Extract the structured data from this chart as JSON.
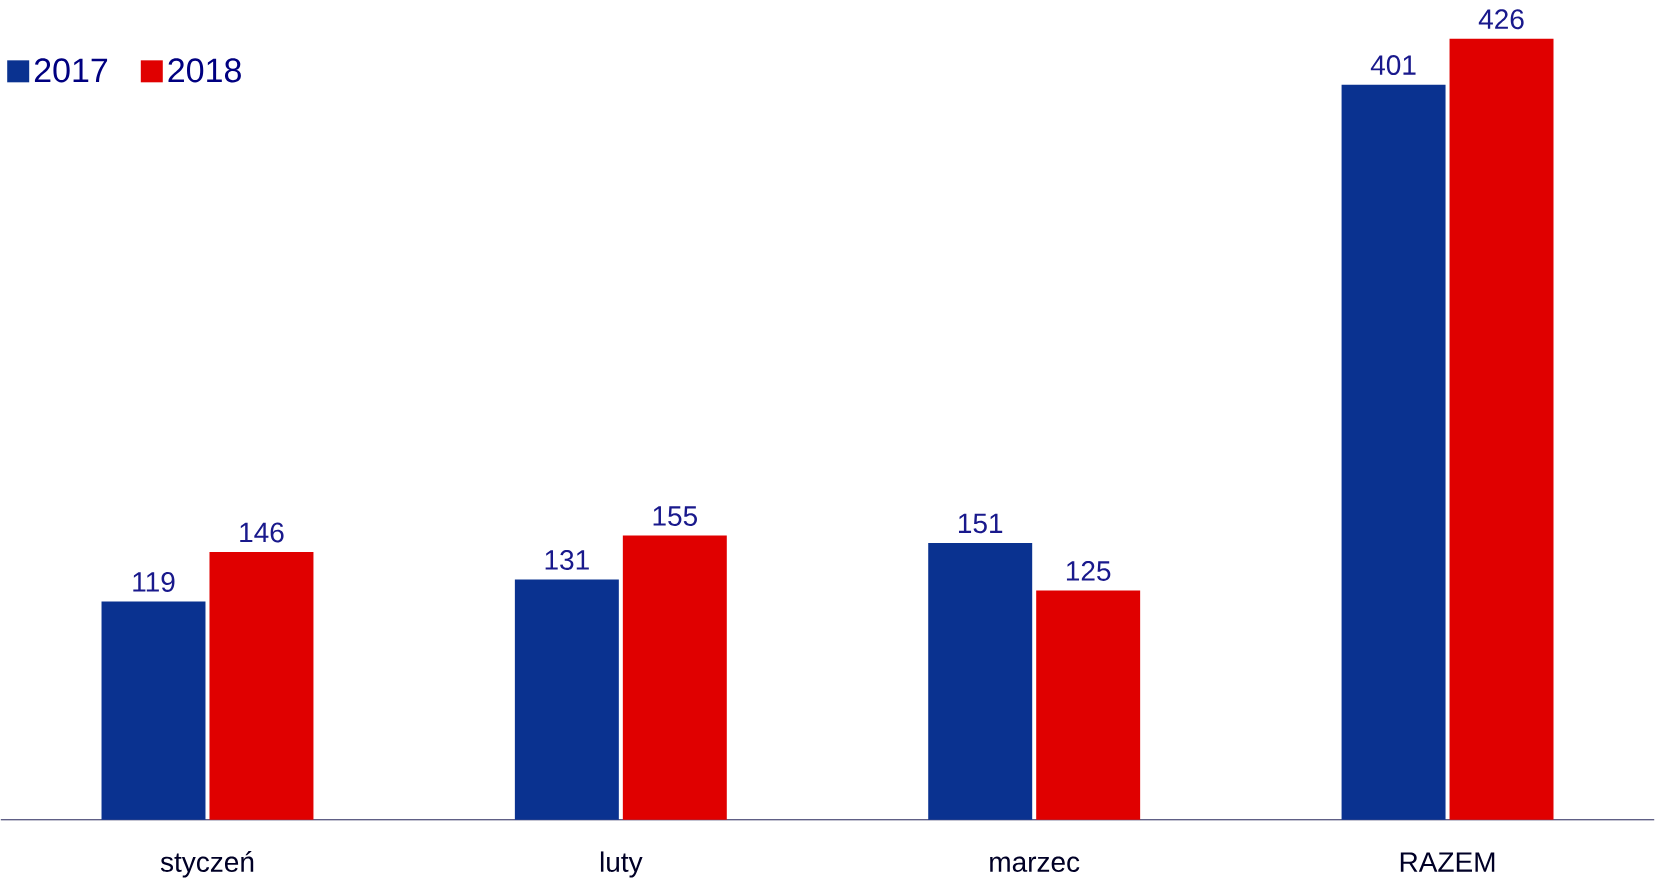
{
  "chart_data": {
    "type": "bar",
    "categories": [
      "styczeń",
      "luty",
      "marzec",
      "RAZEM"
    ],
    "series": [
      {
        "name": "2017",
        "color": "#0a3290",
        "values": [
          119,
          131,
          151,
          401
        ]
      },
      {
        "name": "2018",
        "color": "#e00000",
        "values": [
          146,
          155,
          125,
          426
        ]
      }
    ],
    "data_labels": true,
    "legend": "top left"
  }
}
